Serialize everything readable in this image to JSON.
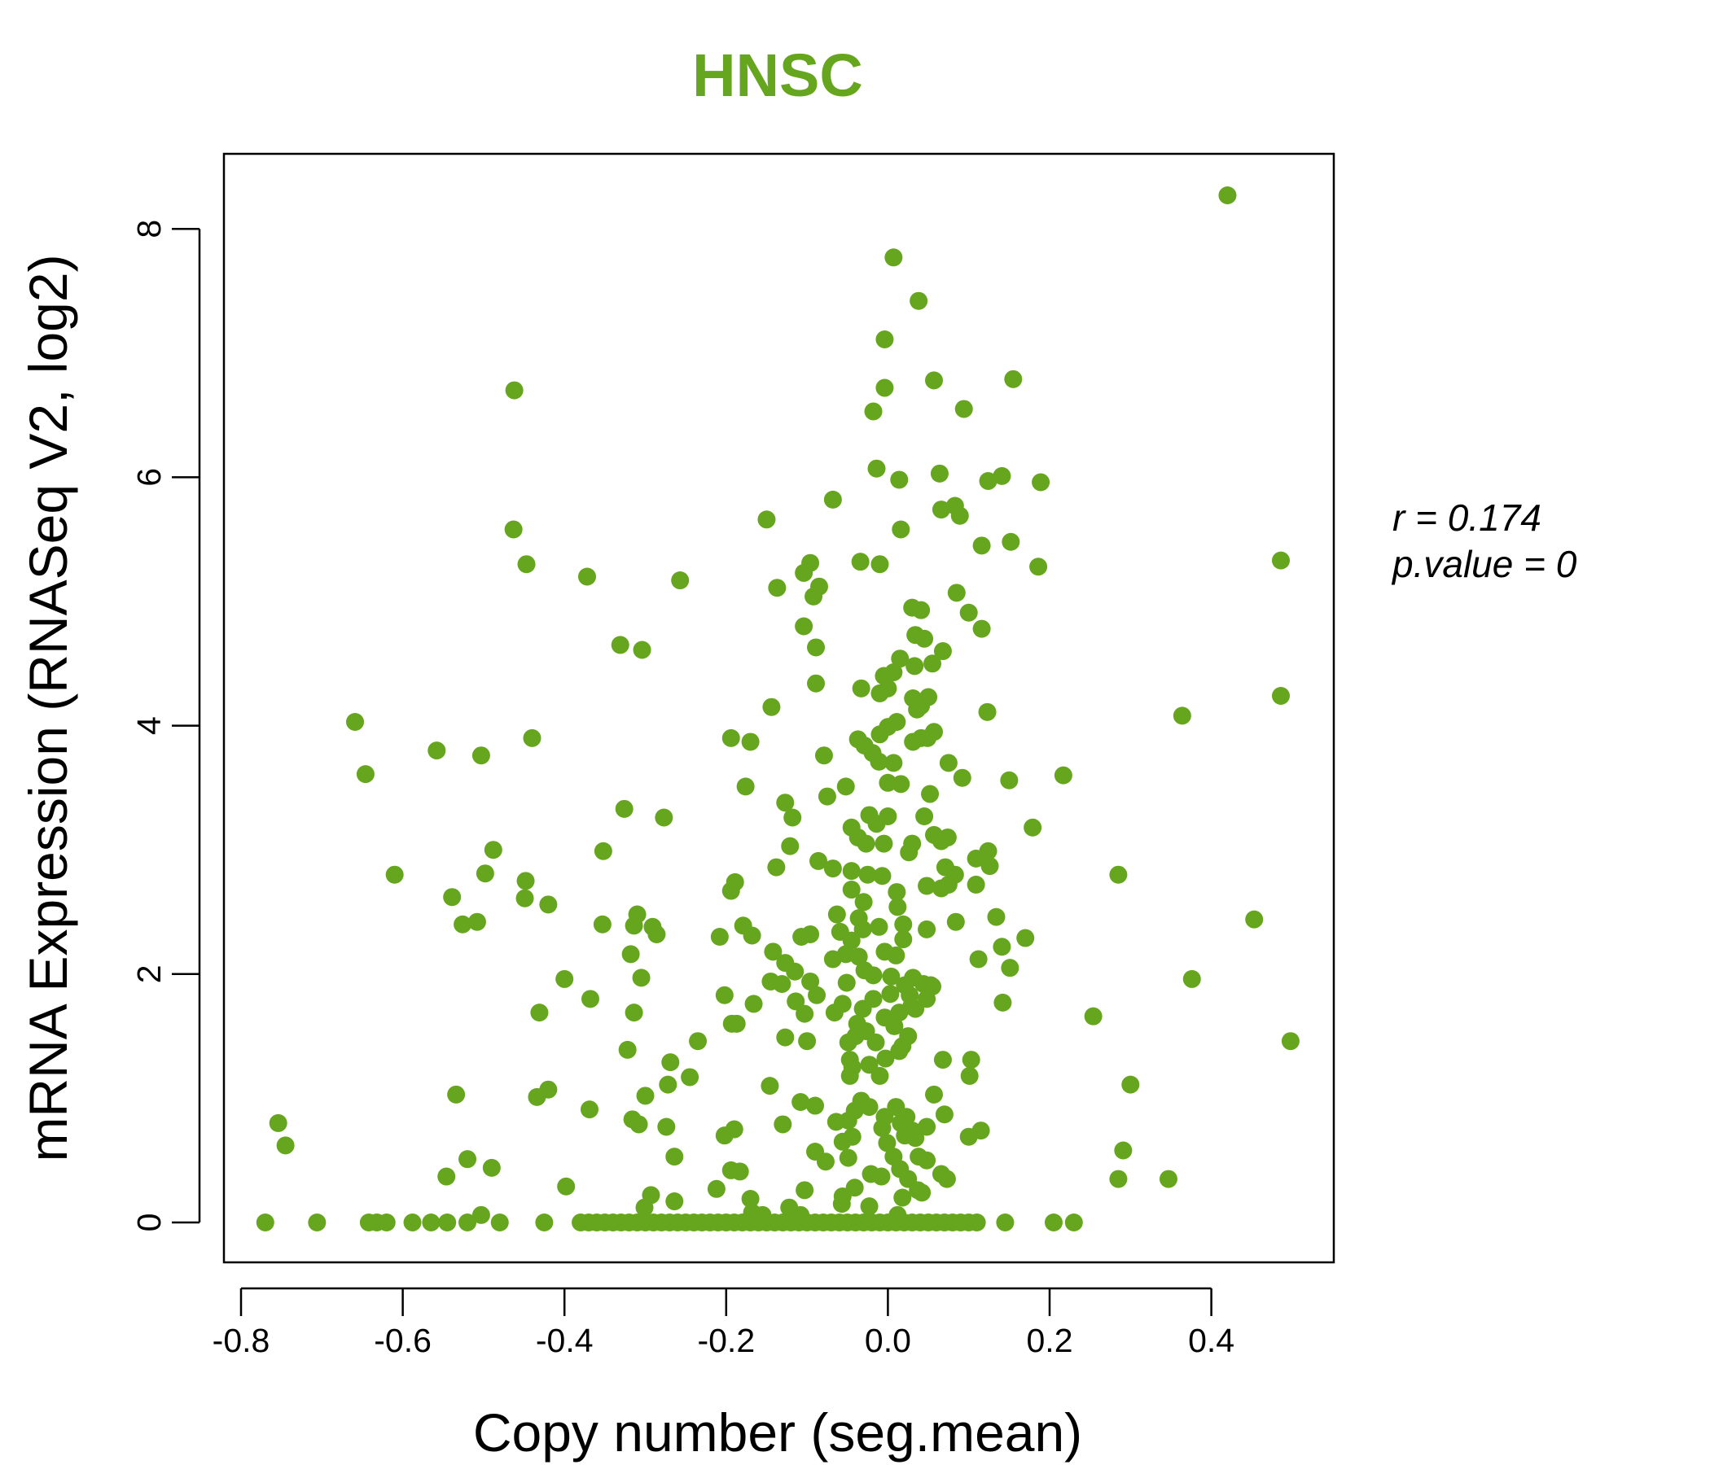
{
  "chart_data": {
    "type": "scatter",
    "title": "HNSC",
    "xlabel": "Copy number (seg.mean)",
    "ylabel": "mRNA Expression (RNASeq V2, log2)",
    "xlim": [
      -0.82,
      0.52
    ],
    "ylim": [
      -0.33,
      8.6
    ],
    "xticks": [
      "-0.8",
      "-0.6",
      "-0.4",
      "-0.2",
      "0.0",
      "0.2",
      "0.4"
    ],
    "yticks": [
      "0",
      "2",
      "4",
      "6",
      "8"
    ],
    "grid": false,
    "color": "#66A61E",
    "annotations": {
      "r": "r = 0.174",
      "p": "p.value = 0"
    },
    "points": [
      [
        0.42,
        8.27
      ],
      [
        0.007,
        7.77
      ],
      [
        0.038,
        7.42
      ],
      [
        -0.004,
        7.11
      ],
      [
        -0.004,
        6.72
      ],
      [
        -0.462,
        6.7
      ],
      [
        0.057,
        6.78
      ],
      [
        0.155,
        6.79
      ],
      [
        0.094,
        6.55
      ],
      [
        -0.018,
        6.53
      ],
      [
        -0.014,
        6.07
      ],
      [
        0.014,
        5.98
      ],
      [
        0.064,
        6.03
      ],
      [
        0.124,
        5.97
      ],
      [
        0.141,
        6.01
      ],
      [
        0.189,
        5.96
      ],
      [
        -0.068,
        5.82
      ],
      [
        -0.15,
        5.66
      ],
      [
        0.066,
        5.74
      ],
      [
        0.083,
        5.77
      ],
      [
        0.089,
        5.69
      ],
      [
        -0.463,
        5.58
      ],
      [
        0.016,
        5.58
      ],
      [
        0.116,
        5.45
      ],
      [
        0.152,
        5.48
      ],
      [
        0.486,
        5.33
      ],
      [
        0.186,
        5.28
      ],
      [
        -0.447,
        5.3
      ],
      [
        -0.372,
        5.2
      ],
      [
        -0.257,
        5.17
      ],
      [
        -0.034,
        5.32
      ],
      [
        -0.01,
        5.3
      ],
      [
        -0.096,
        5.31
      ],
      [
        -0.104,
        5.23
      ],
      [
        -0.137,
        5.11
      ],
      [
        -0.092,
        5.04
      ],
      [
        -0.085,
        5.12
      ],
      [
        0.085,
        5.07
      ],
      [
        0.03,
        4.95
      ],
      [
        0.041,
        4.93
      ],
      [
        0.1,
        4.91
      ],
      [
        0.116,
        4.78
      ],
      [
        -0.104,
        4.8
      ],
      [
        0.034,
        4.73
      ],
      [
        0.045,
        4.7
      ],
      [
        -0.331,
        4.65
      ],
      [
        -0.304,
        4.61
      ],
      [
        -0.089,
        4.63
      ],
      [
        0.068,
        4.6
      ],
      [
        0.015,
        4.54
      ],
      [
        0.033,
        4.48
      ],
      [
        0.055,
        4.5
      ],
      [
        -0.005,
        4.4
      ],
      [
        0.007,
        4.43
      ],
      [
        -0.089,
        4.34
      ],
      [
        -0.033,
        4.3
      ],
      [
        -0.01,
        4.26
      ],
      [
        0.0,
        4.3
      ],
      [
        0.031,
        4.22
      ],
      [
        0.041,
        4.16
      ],
      [
        0.05,
        4.23
      ],
      [
        -0.144,
        4.15
      ],
      [
        0.123,
        4.11
      ],
      [
        0.364,
        4.08
      ],
      [
        0.486,
        4.24
      ],
      [
        -0.659,
        4.03
      ],
      [
        0.0,
        3.99
      ],
      [
        0.011,
        4.03
      ],
      [
        -0.01,
        3.93
      ],
      [
        0.036,
        4.13
      ],
      [
        0.031,
        3.87
      ],
      [
        0.041,
        3.9
      ],
      [
        0.057,
        3.95
      ],
      [
        0.049,
        3.9
      ],
      [
        -0.44,
        3.9
      ],
      [
        -0.194,
        3.9
      ],
      [
        -0.17,
        3.87
      ],
      [
        -0.037,
        3.89
      ],
      [
        -0.029,
        3.84
      ],
      [
        -0.019,
        3.78
      ],
      [
        -0.011,
        3.71
      ],
      [
        0.007,
        3.7
      ],
      [
        -0.558,
        3.8
      ],
      [
        -0.503,
        3.76
      ],
      [
        -0.079,
        3.76
      ],
      [
        0.075,
        3.7
      ],
      [
        0.217,
        3.6
      ],
      [
        -0.646,
        3.61
      ],
      [
        0.15,
        3.56
      ],
      [
        0.092,
        3.58
      ],
      [
        -0.176,
        3.51
      ],
      [
        0.0,
        3.54
      ],
      [
        0.016,
        3.53
      ],
      [
        -0.052,
        3.51
      ],
      [
        0.052,
        3.45
      ],
      [
        -0.075,
        3.43
      ],
      [
        -0.127,
        3.38
      ],
      [
        -0.326,
        3.33
      ],
      [
        -0.277,
        3.26
      ],
      [
        -0.118,
        3.26
      ],
      [
        0.0,
        3.27
      ],
      [
        0.045,
        3.27
      ],
      [
        0.179,
        3.18
      ],
      [
        -0.023,
        3.28
      ],
      [
        -0.014,
        3.21
      ],
      [
        -0.045,
        3.18
      ],
      [
        -0.037,
        3.1
      ],
      [
        -0.027,
        3.05
      ],
      [
        -0.005,
        3.05
      ],
      [
        0.057,
        3.12
      ],
      [
        0.074,
        3.1
      ],
      [
        0.066,
        3.07
      ],
      [
        0.03,
        3.05
      ],
      [
        0.026,
        2.98
      ],
      [
        -0.352,
        2.99
      ],
      [
        -0.488,
        3.0
      ],
      [
        -0.121,
        3.03
      ],
      [
        0.124,
        2.99
      ],
      [
        0.109,
        2.93
      ],
      [
        0.126,
        2.87
      ],
      [
        -0.086,
        2.91
      ],
      [
        -0.068,
        2.85
      ],
      [
        -0.138,
        2.86
      ],
      [
        0.071,
        2.86
      ],
      [
        0.083,
        2.8
      ],
      [
        -0.498,
        2.81
      ],
      [
        -0.61,
        2.8
      ],
      [
        0.285,
        2.8
      ],
      [
        -0.448,
        2.75
      ],
      [
        -0.189,
        2.74
      ],
      [
        -0.045,
        2.83
      ],
      [
        -0.025,
        2.8
      ],
      [
        -0.007,
        2.79
      ],
      [
        0.011,
        2.66
      ],
      [
        -0.045,
        2.68
      ],
      [
        -0.03,
        2.58
      ],
      [
        0.048,
        2.71
      ],
      [
        0.066,
        2.69
      ],
      [
        0.075,
        2.72
      ],
      [
        0.109,
        2.72
      ],
      [
        -0.539,
        2.62
      ],
      [
        -0.449,
        2.61
      ],
      [
        -0.194,
        2.67
      ],
      [
        -0.42,
        2.56
      ],
      [
        0.012,
        2.54
      ],
      [
        -0.063,
        2.48
      ],
      [
        -0.036,
        2.45
      ],
      [
        -0.31,
        2.48
      ],
      [
        0.134,
        2.46
      ],
      [
        0.453,
        2.44
      ],
      [
        0.084,
        2.42
      ],
      [
        -0.353,
        2.4
      ],
      [
        -0.526,
        2.4
      ],
      [
        -0.508,
        2.42
      ],
      [
        -0.314,
        2.39
      ],
      [
        -0.291,
        2.38
      ],
      [
        -0.286,
        2.32
      ],
      [
        -0.179,
        2.39
      ],
      [
        -0.168,
        2.31
      ],
      [
        -0.096,
        2.32
      ],
      [
        -0.107,
        2.3
      ],
      [
        -0.011,
        2.38
      ],
      [
        0.019,
        2.4
      ],
      [
        0.048,
        2.36
      ],
      [
        -0.059,
        2.34
      ],
      [
        -0.045,
        2.27
      ],
      [
        -0.031,
        2.36
      ],
      [
        -0.208,
        2.3
      ],
      [
        0.17,
        2.29
      ],
      [
        0.019,
        2.28
      ],
      [
        -0.318,
        2.16
      ],
      [
        -0.142,
        2.18
      ],
      [
        0.141,
        2.22
      ],
      [
        0.112,
        2.12
      ],
      [
        -0.127,
        2.09
      ],
      [
        -0.068,
        2.12
      ],
      [
        -0.052,
        2.16
      ],
      [
        -0.036,
        2.14
      ],
      [
        -0.004,
        2.18
      ],
      [
        0.01,
        2.15
      ],
      [
        -0.029,
        2.03
      ],
      [
        -0.018,
        1.99
      ],
      [
        0.151,
        2.05
      ],
      [
        -0.115,
        2.02
      ],
      [
        0.031,
        1.97
      ],
      [
        0.044,
        1.92
      ],
      [
        0.055,
        1.9
      ],
      [
        -0.4,
        1.96
      ],
      [
        -0.305,
        1.97
      ],
      [
        -0.145,
        1.94
      ],
      [
        -0.131,
        1.92
      ],
      [
        -0.096,
        1.94
      ],
      [
        -0.051,
        1.93
      ],
      [
        0.004,
        1.98
      ],
      [
        0.021,
        1.91
      ],
      [
        0.053,
        1.91
      ],
      [
        0.027,
        1.83
      ],
      [
        0.376,
        1.96
      ],
      [
        -0.202,
        1.83
      ],
      [
        -0.368,
        1.8
      ],
      [
        -0.088,
        1.83
      ],
      [
        -0.114,
        1.78
      ],
      [
        0.003,
        1.84
      ],
      [
        -0.018,
        1.8
      ],
      [
        -0.056,
        1.76
      ],
      [
        -0.031,
        1.72
      ],
      [
        -0.004,
        1.65
      ],
      [
        0.029,
        1.74
      ],
      [
        0.048,
        1.8
      ],
      [
        -0.166,
        1.76
      ],
      [
        0.142,
        1.77
      ],
      [
        -0.431,
        1.69
      ],
      [
        -0.314,
        1.69
      ],
      [
        -0.103,
        1.68
      ],
      [
        -0.066,
        1.69
      ],
      [
        0.014,
        1.69
      ],
      [
        0.034,
        1.72
      ],
      [
        0.254,
        1.66
      ],
      [
        -0.187,
        1.6
      ],
      [
        -0.193,
        1.6
      ],
      [
        -0.038,
        1.6
      ],
      [
        -0.027,
        1.54
      ],
      [
        -0.015,
        1.45
      ],
      [
        0.008,
        1.58
      ],
      [
        0.025,
        1.5
      ],
      [
        0.018,
        1.42
      ],
      [
        -0.127,
        1.49
      ],
      [
        -0.235,
        1.46
      ],
      [
        -0.1,
        1.46
      ],
      [
        0.498,
        1.46
      ],
      [
        -0.049,
        1.45
      ],
      [
        -0.04,
        1.5
      ],
      [
        0.014,
        1.38
      ],
      [
        -0.322,
        1.39
      ],
      [
        -0.003,
        1.32
      ],
      [
        -0.047,
        1.31
      ],
      [
        0.068,
        1.31
      ],
      [
        0.103,
        1.31
      ],
      [
        -0.269,
        1.29
      ],
      [
        -0.044,
        1.25
      ],
      [
        -0.023,
        1.27
      ],
      [
        -0.01,
        1.18
      ],
      [
        -0.047,
        1.18
      ],
      [
        -0.245,
        1.17
      ],
      [
        0.101,
        1.18
      ],
      [
        -0.272,
        1.11
      ],
      [
        -0.146,
        1.1
      ],
      [
        0.3,
        1.11
      ],
      [
        -0.42,
        1.07
      ],
      [
        -0.434,
        1.01
      ],
      [
        -0.534,
        1.03
      ],
      [
        -0.3,
        1.02
      ],
      [
        0.057,
        1.03
      ],
      [
        -0.108,
        0.97
      ],
      [
        -0.09,
        0.94
      ],
      [
        -0.033,
        0.98
      ],
      [
        -0.023,
        0.93
      ],
      [
        0.01,
        0.93
      ],
      [
        -0.041,
        0.9
      ],
      [
        -0.004,
        0.85
      ],
      [
        0.023,
        0.85
      ],
      [
        -0.369,
        0.91
      ],
      [
        0.07,
        0.87
      ],
      [
        -0.13,
        0.79
      ],
      [
        -0.064,
        0.81
      ],
      [
        -0.316,
        0.83
      ],
      [
        -0.308,
        0.79
      ],
      [
        -0.274,
        0.77
      ],
      [
        -0.049,
        0.82
      ],
      [
        -0.007,
        0.76
      ],
      [
        0.03,
        0.74
      ],
      [
        0.016,
        0.8
      ],
      [
        0.048,
        0.77
      ],
      [
        -0.754,
        0.8
      ],
      [
        -0.19,
        0.75
      ],
      [
        -0.202,
        0.7
      ],
      [
        0.1,
        0.69
      ],
      [
        0.115,
        0.74
      ],
      [
        -0.745,
        0.62
      ],
      [
        -0.044,
        0.69
      ],
      [
        -0.056,
        0.65
      ],
      [
        -0.001,
        0.64
      ],
      [
        0.021,
        0.7
      ],
      [
        0.034,
        0.68
      ],
      [
        0.291,
        0.58
      ],
      [
        -0.09,
        0.57
      ],
      [
        -0.264,
        0.53
      ],
      [
        -0.077,
        0.49
      ],
      [
        -0.049,
        0.52
      ],
      [
        0.007,
        0.53
      ],
      [
        0.038,
        0.53
      ],
      [
        0.048,
        0.5
      ],
      [
        -0.52,
        0.51
      ],
      [
        -0.49,
        0.44
      ],
      [
        -0.194,
        0.42
      ],
      [
        -0.183,
        0.41
      ],
      [
        -0.546,
        0.37
      ],
      [
        -0.021,
        0.39
      ],
      [
        -0.008,
        0.37
      ],
      [
        0.015,
        0.43
      ],
      [
        0.025,
        0.35
      ],
      [
        0.066,
        0.39
      ],
      [
        0.073,
        0.35
      ],
      [
        0.285,
        0.35
      ],
      [
        0.347,
        0.35
      ],
      [
        -0.212,
        0.27
      ],
      [
        0.037,
        0.26
      ],
      [
        -0.041,
        0.28
      ],
      [
        0.042,
        0.24
      ],
      [
        -0.398,
        0.29
      ],
      [
        -0.103,
        0.26
      ],
      [
        -0.056,
        0.21
      ],
      [
        -0.293,
        0.22
      ],
      [
        -0.17,
        0.19
      ],
      [
        -0.264,
        0.17
      ],
      [
        0.018,
        0.2
      ],
      [
        -0.301,
        0.12
      ],
      [
        -0.122,
        0.12
      ],
      [
        -0.057,
        0.15
      ],
      [
        -0.023,
        0.13
      ],
      [
        -0.503,
        0.06
      ],
      [
        -0.168,
        0.08
      ],
      [
        -0.155,
        0.06
      ],
      [
        0.012,
        0.06
      ],
      [
        -0.108,
        0.06
      ]
    ],
    "zero_points_x": [
      -0.77,
      -0.706,
      -0.642,
      -0.632,
      -0.62,
      -0.588,
      -0.565,
      -0.545,
      -0.52,
      -0.48,
      -0.425,
      -0.38,
      -0.37,
      -0.36,
      -0.35,
      -0.34,
      -0.33,
      -0.32,
      -0.31,
      -0.3,
      -0.29,
      -0.28,
      -0.27,
      -0.26,
      -0.25,
      -0.24,
      -0.23,
      -0.22,
      -0.21,
      -0.2,
      -0.19,
      -0.18,
      -0.17,
      -0.16,
      -0.15,
      -0.14,
      -0.13,
      -0.12,
      -0.11,
      -0.1,
      -0.09,
      -0.08,
      -0.07,
      -0.06,
      -0.05,
      -0.04,
      -0.03,
      -0.02,
      -0.01,
      0.0,
      0.01,
      0.02,
      0.03,
      0.04,
      0.05,
      0.06,
      0.07,
      0.08,
      0.09,
      0.1,
      0.11,
      0.145,
      0.205,
      0.23
    ]
  }
}
